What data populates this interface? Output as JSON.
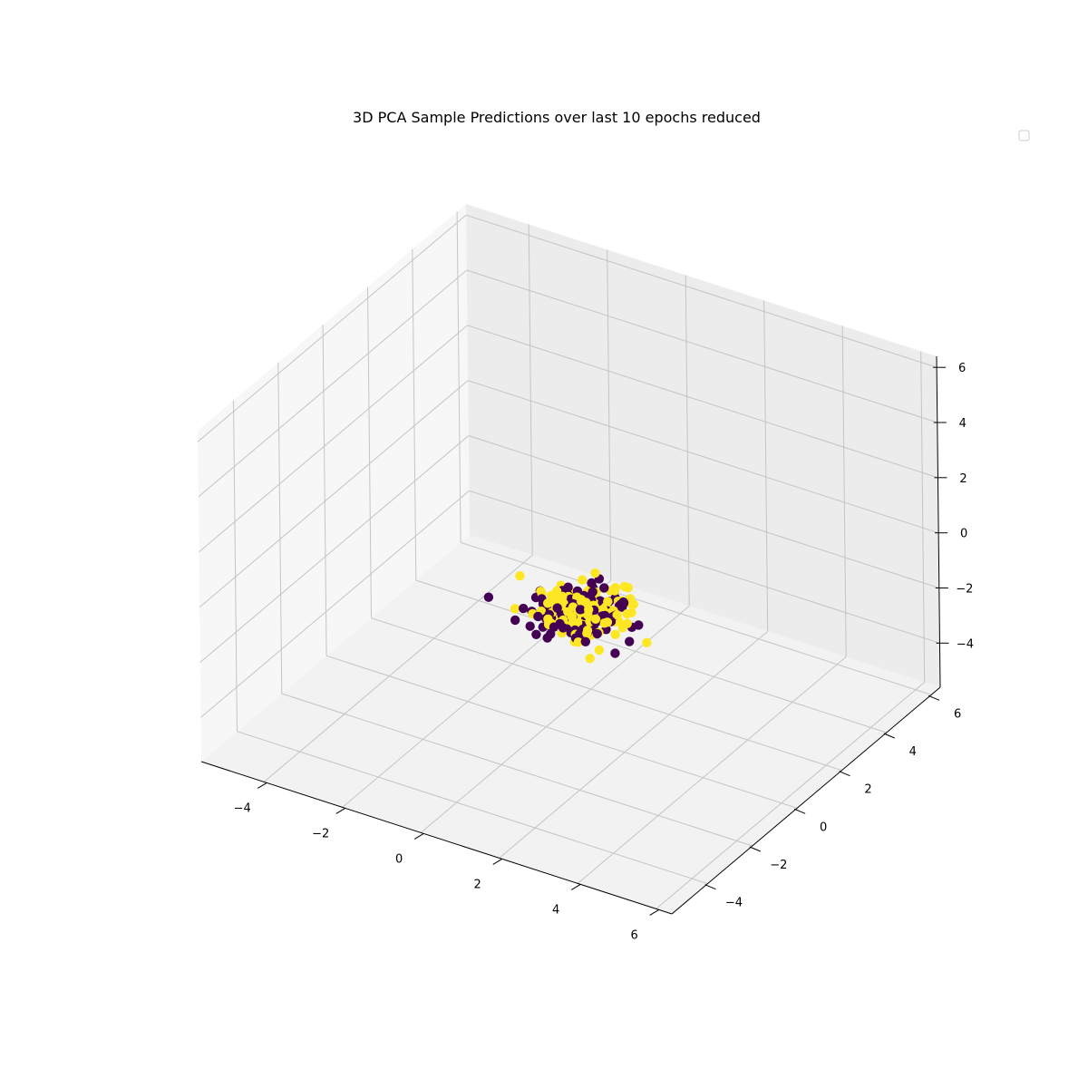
{
  "chart_data": {
    "type": "scatter",
    "projection": "3d",
    "title": "3D PCA Sample Predictions over last 10 epochs reduced",
    "xlabel": "",
    "ylabel": "",
    "zlabel": "",
    "xlim": [
      -5.6,
      6.4
    ],
    "ylim": [
      -5.6,
      6.4
    ],
    "zlim": [
      -5.6,
      6.4
    ],
    "x_ticks": [
      -4,
      -2,
      0,
      2,
      4,
      6
    ],
    "y_ticks": [
      -4,
      -2,
      0,
      2,
      4,
      6
    ],
    "z_ticks": [
      -4,
      -2,
      0,
      2,
      4,
      6
    ],
    "grid": true,
    "legend": {
      "placement": "top-right",
      "entries": []
    },
    "colormap": "viridis",
    "class_colors": [
      "#440154",
      "#fde725"
    ],
    "cluster": {
      "center": [
        0.4,
        0.9,
        -1.9
      ],
      "spread": [
        0.55,
        0.55,
        0.2
      ],
      "n_points": 260
    }
  }
}
